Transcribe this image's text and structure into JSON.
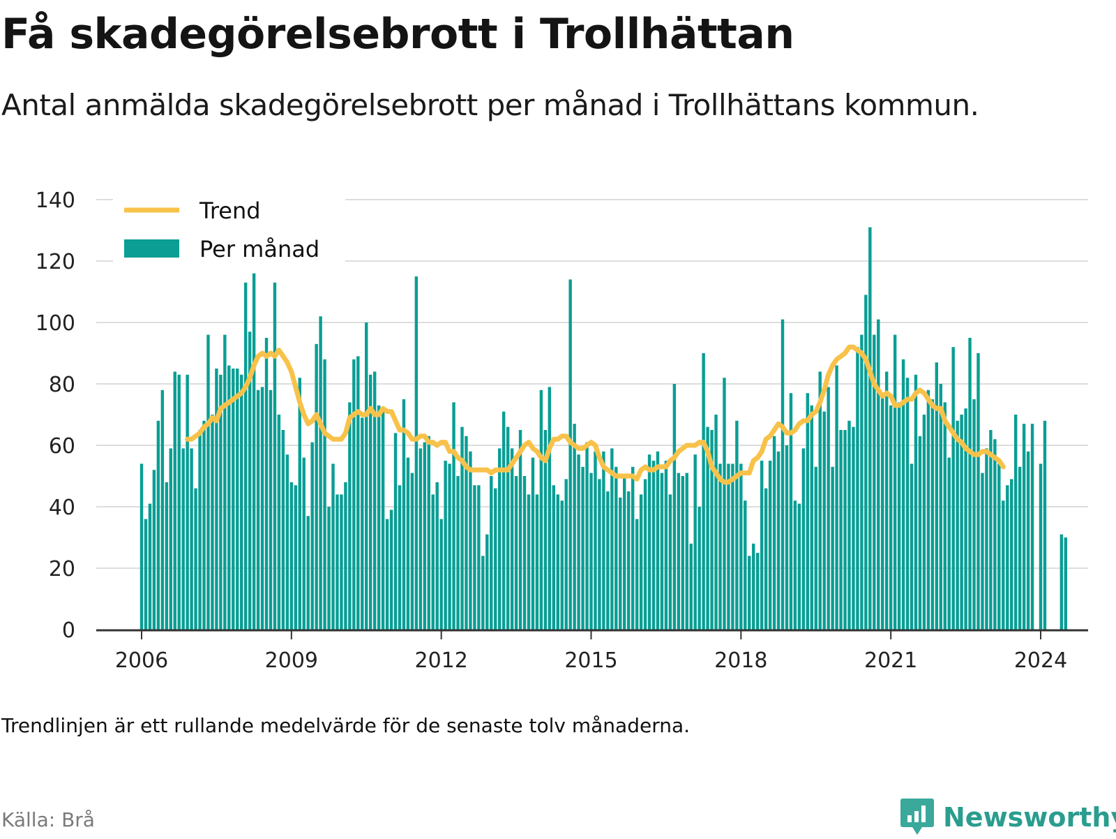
{
  "title": "Få skadegörelsebrott i Trollhättan",
  "subtitle": "Antal anmälda skadegörelsebrott per månad i Trollhättans kommun.",
  "note": "Trendlinjen är ett rullande medelvärde för de senaste tolv månaderna.",
  "source": "Källa: Brå",
  "brand": {
    "name": "Newsworthy",
    "icon": "bar-chart-speech-bubble-icon"
  },
  "colors": {
    "bars": "#0a9e94",
    "trend": "#f8c24a",
    "grid": "#dddddd",
    "axis": "#333333",
    "brand": "#2a9d8f"
  },
  "chart_data": {
    "type": "bar",
    "start": "2006-01",
    "legend": {
      "placement": "top-left",
      "trend_label": "Trend",
      "bars_label": "Per månad"
    },
    "ylim": [
      0,
      140
    ],
    "yticks": [
      0,
      20,
      40,
      60,
      80,
      100,
      120,
      140
    ],
    "xticks": [
      "2006",
      "2009",
      "2012",
      "2015",
      "2018",
      "2021",
      "2024"
    ],
    "grid": true,
    "series": [
      {
        "name": "Per månad",
        "type": "bar",
        "values": [
          54,
          36,
          41,
          52,
          68,
          78,
          48,
          59,
          84,
          83,
          59,
          83,
          59,
          46,
          65,
          68,
          96,
          70,
          85,
          83,
          96,
          86,
          85,
          85,
          83,
          113,
          97,
          116,
          78,
          79,
          95,
          78,
          113,
          70,
          65,
          57,
          48,
          47,
          82,
          56,
          37,
          61,
          93,
          102,
          88,
          40,
          54,
          44,
          44,
          48,
          74,
          88,
          89,
          69,
          100,
          83,
          84,
          73,
          72,
          36,
          39,
          64,
          47,
          75,
          56,
          51,
          115,
          59,
          61,
          63,
          44,
          48,
          36,
          55,
          54,
          74,
          50,
          66,
          63,
          58,
          47,
          47,
          24,
          31,
          50,
          46,
          59,
          71,
          66,
          59,
          50,
          65,
          50,
          44,
          56,
          44,
          78,
          65,
          79,
          47,
          44,
          42,
          49,
          114,
          67,
          57,
          53,
          61,
          51,
          58,
          49,
          58,
          45,
          59,
          53,
          43,
          50,
          45,
          53,
          36,
          44,
          49,
          57,
          55,
          58,
          51,
          55,
          44,
          80,
          51,
          50,
          51,
          28,
          57,
          40,
          90,
          66,
          65,
          70,
          54,
          82,
          54,
          54,
          68,
          54,
          42,
          24,
          28,
          25,
          55,
          46,
          55,
          63,
          58,
          101,
          60,
          77,
          42,
          41,
          59,
          77,
          73,
          53,
          84,
          71,
          79,
          53,
          86,
          65,
          65,
          68,
          66,
          92,
          96,
          109,
          131,
          96,
          101,
          77,
          84,
          73,
          96,
          74,
          88,
          82,
          54,
          83,
          63,
          70,
          78,
          75,
          87,
          80,
          74,
          56,
          92,
          68,
          70,
          72,
          95,
          75,
          90,
          51,
          59,
          65,
          62,
          54,
          42,
          47,
          49,
          70,
          53,
          67,
          58,
          67,
          0,
          54,
          68,
          0,
          0,
          0,
          31,
          30
        ]
      },
      {
        "name": "Trend",
        "type": "line",
        "start": "2006-12",
        "values": [
          62,
          62,
          63,
          64,
          66,
          67,
          69,
          68,
          72,
          73,
          74,
          75,
          76,
          77,
          79,
          82,
          86,
          89,
          90,
          89,
          90,
          89,
          91,
          89,
          87,
          84,
          79,
          74,
          70,
          67,
          68,
          70,
          67,
          64,
          63,
          62,
          62,
          62,
          64,
          69,
          70,
          71,
          70,
          70,
          72,
          70,
          70,
          72,
          71,
          71,
          68,
          65,
          65,
          64,
          62,
          62,
          63,
          63,
          61,
          61,
          60,
          61,
          61,
          58,
          58,
          56,
          55,
          53,
          52,
          52,
          52,
          52,
          52,
          51,
          52,
          52,
          52,
          52,
          54,
          56,
          58,
          60,
          61,
          59,
          58,
          56,
          55,
          59,
          62,
          62,
          63,
          63,
          61,
          60,
          59,
          59,
          60,
          61,
          60,
          56,
          53,
          52,
          51,
          50,
          50,
          50,
          50,
          50,
          49,
          52,
          53,
          52,
          52,
          53,
          53,
          53,
          55,
          56,
          58,
          59,
          60,
          60,
          60,
          61,
          61,
          58,
          53,
          51,
          49,
          48,
          48,
          49,
          50,
          51,
          51,
          51,
          55,
          56,
          58,
          62,
          63,
          65,
          67,
          66,
          64,
          64,
          65,
          67,
          68,
          68,
          70,
          71,
          74,
          78,
          83,
          86,
          88,
          89,
          90,
          92,
          92,
          91,
          90,
          88,
          84,
          80,
          78,
          76,
          77,
          76,
          73,
          73,
          74,
          75,
          75,
          77,
          78,
          77,
          75,
          73,
          72,
          72,
          68,
          66,
          64,
          62,
          61,
          59,
          58,
          57,
          57,
          58,
          58,
          57,
          56,
          55,
          53
        ]
      }
    ]
  }
}
